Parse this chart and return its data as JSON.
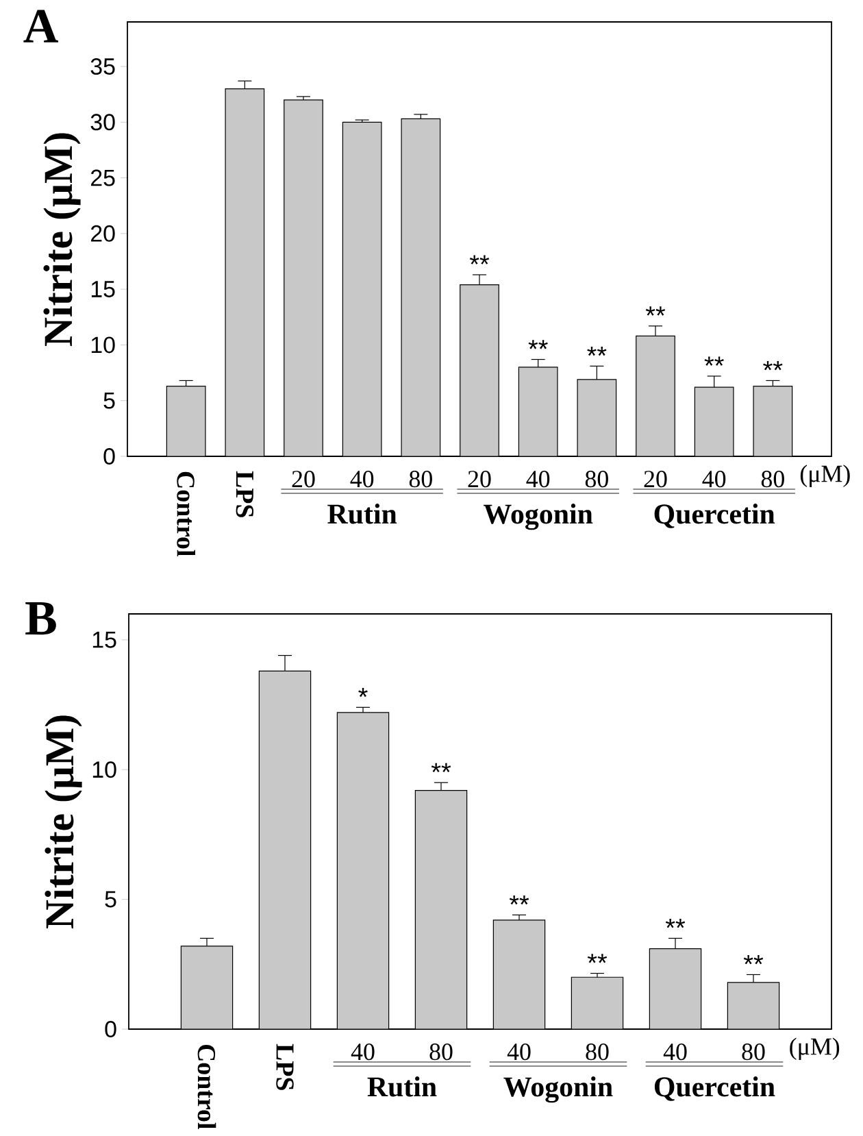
{
  "chart_data": [
    {
      "type": "bar",
      "title": "A",
      "ylabel": "Nitrite (μM)",
      "categories": [
        "Control",
        "LPS",
        "20",
        "40",
        "80",
        "20",
        "40",
        "80",
        "20",
        "40",
        "80"
      ],
      "values": [
        6.3,
        33.0,
        32.0,
        30.0,
        30.3,
        15.4,
        8.0,
        6.9,
        10.8,
        6.2,
        6.3
      ],
      "errors": [
        0.5,
        0.7,
        0.3,
        0.2,
        0.4,
        0.9,
        0.7,
        1.2,
        0.9,
        1.0,
        0.5
      ],
      "value_labels": [
        null,
        null,
        null,
        null,
        null,
        "**",
        "**",
        "**",
        "**",
        "**",
        "**"
      ],
      "color": "#c8c8c8",
      "ylim": [
        0,
        39
      ],
      "yticks": [
        0,
        5,
        10,
        15,
        20,
        25,
        30,
        35
      ],
      "annotations": [
        "Rutin",
        "Wogonin",
        "Quercetin",
        "(μM)"
      ]
    },
    {
      "type": "bar",
      "title": "B",
      "ylabel": "Nitrite (μM)",
      "categories": [
        "Control",
        "LPS",
        "40",
        "80",
        "40",
        "80",
        "40",
        "80"
      ],
      "values": [
        3.2,
        13.8,
        12.2,
        9.2,
        4.2,
        2.0,
        3.1,
        1.8
      ],
      "errors": [
        0.3,
        0.6,
        0.2,
        0.3,
        0.2,
        0.15,
        0.4,
        0.3
      ],
      "value_labels": [
        null,
        null,
        "*",
        "**",
        "**",
        "**",
        "**",
        "**"
      ],
      "color": "#c8c8c8",
      "ylim": [
        0,
        16
      ],
      "yticks": [
        0,
        5,
        10,
        15
      ],
      "annotations": [
        "Rutin",
        "Wogonin",
        "Quercetin",
        "(μM)"
      ]
    }
  ]
}
